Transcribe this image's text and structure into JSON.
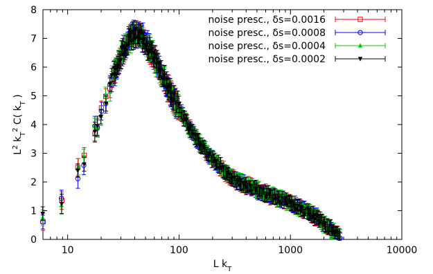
{
  "chart_data": {
    "type": "scatter",
    "title": "",
    "xlabel": "L k_T",
    "ylabel": "L^2 k_T^2 C( k_T )",
    "x_scale": "log",
    "xlim": [
      6,
      10000
    ],
    "ylim": [
      0,
      8
    ],
    "x_ticks": [
      10,
      100,
      1000,
      10000
    ],
    "x_tick_labels": [
      "10",
      "100",
      "1000",
      "10000"
    ],
    "y_ticks": [
      0,
      1,
      2,
      3,
      4,
      5,
      6,
      7,
      8
    ],
    "y_tick_labels": [
      "0",
      "1",
      "2",
      "3",
      "4",
      "5",
      "6",
      "7",
      "8"
    ],
    "grid": false,
    "legend_position": "top-right",
    "series": [
      {
        "name": "noise presc., δs=0.0016",
        "color": "#ff0000",
        "marker": "square-open"
      },
      {
        "name": "noise presc., δs=0.0008",
        "color": "#0000ff",
        "marker": "circle-open"
      },
      {
        "name": "noise presc., δs=0.0004",
        "color": "#00cc00",
        "marker": "triangle-up"
      },
      {
        "name": "noise presc., δs=0.0002",
        "color": "#000000",
        "marker": "triangle-down"
      }
    ],
    "curve": {
      "x": [
        6,
        8.8,
        12.4,
        14,
        17.5,
        20,
        23,
        26,
        30,
        35,
        40,
        45,
        50,
        55,
        60,
        70,
        80,
        100,
        130,
        160,
        200,
        260,
        330,
        420,
        550,
        700,
        900,
        1150,
        1450,
        1800,
        2150,
        2500,
        2800
      ],
      "y": [
        0.7,
        1.25,
        2.35,
        2.8,
        3.8,
        4.4,
        5.1,
        5.8,
        6.4,
        6.9,
        7.15,
        7.1,
        6.9,
        6.6,
        6.3,
        5.75,
        5.25,
        4.55,
        3.75,
        3.25,
        2.8,
        2.35,
        2.05,
        1.85,
        1.65,
        1.5,
        1.35,
        1.15,
        0.95,
        0.7,
        0.45,
        0.25,
        0.05
      ]
    },
    "error_bar": 0.22
  }
}
